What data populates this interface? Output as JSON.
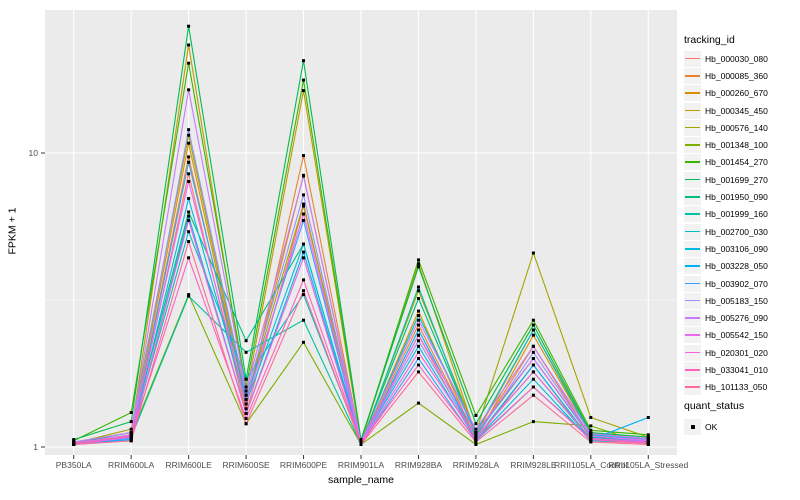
{
  "chart_data": {
    "type": "line",
    "title": "",
    "xlabel": "sample_name",
    "ylabel": "FPKM + 1",
    "y_scale": "log10",
    "ylim": [
      1,
      32
    ],
    "grid": true,
    "legend_position": "right",
    "y_ticks": [
      {
        "label": "1",
        "value": 1
      },
      {
        "label": "10",
        "value": 10
      }
    ],
    "y_minor_values": [
      3.1623
    ],
    "categories": [
      "PB350LA",
      "RRIM600LA",
      "RRIM600LE",
      "RRIM600SE",
      "RRIM600PE",
      "RRIM901LA",
      "RRIM928BA",
      "RRIM928LA",
      "RRIM928LE",
      "RRII105LA_Control",
      "RRII105LA_Stressed"
    ],
    "series": [
      {
        "name": "Hb_000030_080",
        "color": "#F8766D",
        "values": [
          1.02,
          1.05,
          8.5,
          1.3,
          6.6,
          1.02,
          2.4,
          1.05,
          1.9,
          1.05,
          1.03
        ]
      },
      {
        "name": "Hb_000085_360",
        "color": "#EA8331",
        "values": [
          1.03,
          1.08,
          9.7,
          1.35,
          9.8,
          1.03,
          2.6,
          1.08,
          2.2,
          1.08,
          1.04
        ]
      },
      {
        "name": "Hb_000260_670",
        "color": "#D89000",
        "values": [
          1.02,
          1.1,
          10.8,
          1.4,
          8.4,
          1.02,
          2.9,
          1.06,
          2.4,
          1.1,
          1.05
        ]
      },
      {
        "name": "Hb_000345_450",
        "color": "#C09B00",
        "values": [
          1.04,
          1.12,
          23.3,
          1.5,
          16.3,
          1.04,
          4.2,
          1.1,
          2.5,
          1.12,
          1.06
        ]
      },
      {
        "name": "Hb_000576_140",
        "color": "#A3A500",
        "values": [
          1.03,
          1.15,
          11.5,
          1.45,
          6.7,
          1.03,
          3.4,
          1.12,
          4.57,
          1.26,
          1.08
        ]
      },
      {
        "name": "Hb_001348_100",
        "color": "#7CAE00",
        "values": [
          1.02,
          1.1,
          3.3,
          1.2,
          2.27,
          1.02,
          1.41,
          1.02,
          1.22,
          1.18,
          1.02
        ]
      },
      {
        "name": "Hb_001454_270",
        "color": "#39B600",
        "values": [
          1.05,
          1.31,
          20.2,
          1.6,
          17.7,
          1.05,
          4.33,
          1.28,
          2.7,
          1.14,
          1.1
        ]
      },
      {
        "name": "Hb_001699_270",
        "color": "#00BB4E",
        "values": [
          1.06,
          1.22,
          27.0,
          1.7,
          20.6,
          1.06,
          4.1,
          1.2,
          2.6,
          1.12,
          1.08
        ]
      },
      {
        "name": "Hb_001950_090",
        "color": "#00BF7D",
        "values": [
          1.03,
          1.12,
          6.3,
          2.3,
          4.9,
          1.03,
          3.2,
          1.1,
          2.0,
          1.08,
          1.05
        ]
      },
      {
        "name": "Hb_001999_160",
        "color": "#00C1A3",
        "values": [
          1.02,
          1.08,
          3.26,
          2.1,
          2.7,
          1.02,
          3.5,
          1.08,
          1.8,
          1.06,
          1.04
        ]
      },
      {
        "name": "Hb_002700_030",
        "color": "#00BFC4",
        "values": [
          1.03,
          1.1,
          5.4,
          1.7,
          3.3,
          1.03,
          2.8,
          1.12,
          2.5,
          1.1,
          1.06
        ]
      },
      {
        "name": "Hb_003106_090",
        "color": "#00BAE0",
        "values": [
          1.03,
          1.08,
          7.0,
          1.4,
          4.9,
          1.03,
          2.2,
          1.06,
          1.7,
          1.05,
          1.04
        ]
      },
      {
        "name": "Hb_003228_050",
        "color": "#00B0F6",
        "values": [
          1.02,
          1.06,
          6.1,
          1.3,
          4.6,
          1.02,
          2.5,
          1.07,
          1.9,
          1.06,
          1.26
        ]
      },
      {
        "name": "Hb_003902_070",
        "color": "#35A2FF",
        "values": [
          1.02,
          1.07,
          9.3,
          1.45,
          5.9,
          1.02,
          2.0,
          1.05,
          1.6,
          1.07,
          1.05
        ]
      },
      {
        "name": "Hb_005183_150",
        "color": "#9590FF",
        "values": [
          1.03,
          1.09,
          12.0,
          1.5,
          7.2,
          1.03,
          2.3,
          1.08,
          2.1,
          1.09,
          1.06
        ]
      },
      {
        "name": "Hb_005276_090",
        "color": "#C77CFF",
        "values": [
          1.04,
          1.12,
          16.4,
          1.55,
          8.35,
          1.04,
          2.7,
          1.15,
          2.2,
          1.11,
          1.07
        ]
      },
      {
        "name": "Hb_005542_150",
        "color": "#E76BF3",
        "values": [
          1.03,
          1.1,
          8.0,
          1.4,
          6.2,
          1.03,
          2.4,
          1.12,
          2.0,
          1.09,
          1.05
        ]
      },
      {
        "name": "Hb_020301_020",
        "color": "#FA62DB",
        "values": [
          1.02,
          1.08,
          5.9,
          1.3,
          4.4,
          1.02,
          2.1,
          1.08,
          1.8,
          1.07,
          1.04
        ]
      },
      {
        "name": "Hb_033041_010",
        "color": "#FF62BC",
        "values": [
          1.03,
          1.09,
          4.4,
          1.25,
          3.7,
          1.03,
          1.9,
          1.06,
          1.6,
          1.06,
          1.03
        ]
      },
      {
        "name": "Hb_101133_050",
        "color": "#FF6A98",
        "values": [
          1.02,
          1.05,
          5.0,
          1.2,
          3.4,
          1.02,
          1.8,
          1.04,
          1.5,
          1.04,
          1.02
        ]
      }
    ],
    "point_marker": {
      "shape": "square",
      "color": "#000000"
    },
    "legends": {
      "color": {
        "title": "tracking_id"
      },
      "shape": {
        "title": "quant_status",
        "items": [
          {
            "label": "OK",
            "marker": "square",
            "color": "#000000"
          }
        ]
      }
    }
  },
  "theme": {
    "panel_bg": "#EBEBEB",
    "grid_major": "#FFFFFF",
    "grid_minor": "#F5F5F5",
    "axis_text": "#4D4D4D",
    "tick_mark": "#333333",
    "legend_key_bg": "#F2F2F2"
  }
}
